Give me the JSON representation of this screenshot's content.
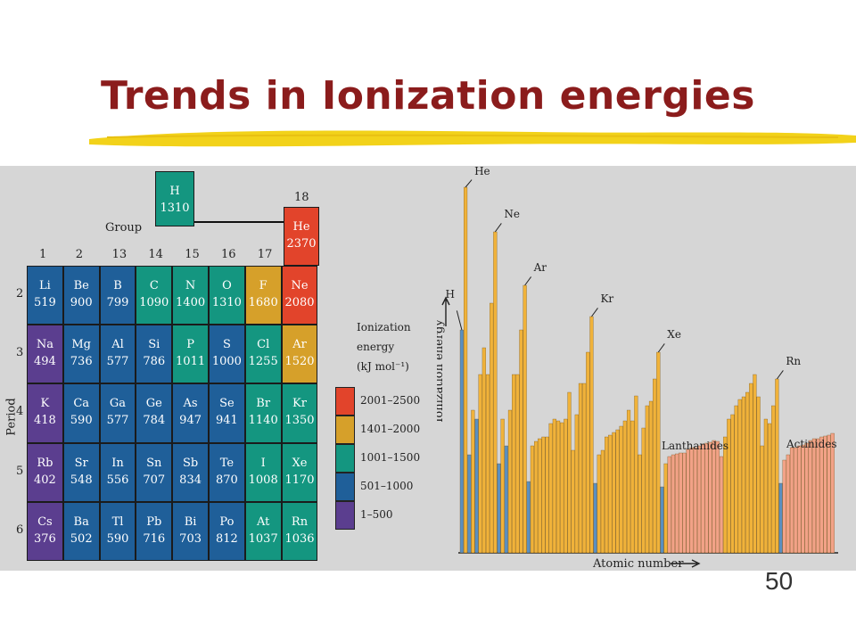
{
  "slide": {
    "title": "Trends in Ionization energies",
    "page_number": "50"
  },
  "colors": {
    "title": "#8b1c1c",
    "highlighter": "#f2d21a",
    "purple": "#5b3e8f",
    "blue": "#1f5f99",
    "teal": "#149680",
    "gold": "#d6a02a",
    "red": "#e2442b",
    "bar_orange": "#f0b23a",
    "bar_blue": "#5a8fc0",
    "bar_salmon": "#f2a287"
  },
  "periodic_table": {
    "hydrogen": {
      "sym": "H",
      "val": "1310",
      "color": "teal"
    },
    "group_label": "Group",
    "group_18_label": "18",
    "period_label": "Period",
    "group_numbers": [
      "1",
      "2",
      "13",
      "14",
      "15",
      "16",
      "17"
    ],
    "period_numbers": [
      "2",
      "3",
      "4",
      "5",
      "6"
    ],
    "helium": {
      "sym": "He",
      "val": "2370",
      "color": "red"
    },
    "rows": [
      [
        {
          "sym": "Li",
          "val": "519",
          "color": "blue"
        },
        {
          "sym": "Be",
          "val": "900",
          "color": "blue"
        },
        {
          "sym": "B",
          "val": "799",
          "color": "blue"
        },
        {
          "sym": "C",
          "val": "1090",
          "color": "teal"
        },
        {
          "sym": "N",
          "val": "1400",
          "color": "teal"
        },
        {
          "sym": "O",
          "val": "1310",
          "color": "teal"
        },
        {
          "sym": "F",
          "val": "1680",
          "color": "gold"
        },
        {
          "sym": "Ne",
          "val": "2080",
          "color": "red"
        }
      ],
      [
        {
          "sym": "Na",
          "val": "494",
          "color": "purple"
        },
        {
          "sym": "Mg",
          "val": "736",
          "color": "blue"
        },
        {
          "sym": "Al",
          "val": "577",
          "color": "blue"
        },
        {
          "sym": "Si",
          "val": "786",
          "color": "blue"
        },
        {
          "sym": "P",
          "val": "1011",
          "color": "teal"
        },
        {
          "sym": "S",
          "val": "1000",
          "color": "blue"
        },
        {
          "sym": "Cl",
          "val": "1255",
          "color": "teal"
        },
        {
          "sym": "Ar",
          "val": "1520",
          "color": "gold"
        }
      ],
      [
        {
          "sym": "K",
          "val": "418",
          "color": "purple"
        },
        {
          "sym": "Ca",
          "val": "590",
          "color": "blue"
        },
        {
          "sym": "Ga",
          "val": "577",
          "color": "blue"
        },
        {
          "sym": "Ge",
          "val": "784",
          "color": "blue"
        },
        {
          "sym": "As",
          "val": "947",
          "color": "blue"
        },
        {
          "sym": "Se",
          "val": "941",
          "color": "blue"
        },
        {
          "sym": "Br",
          "val": "1140",
          "color": "teal"
        },
        {
          "sym": "Kr",
          "val": "1350",
          "color": "teal"
        }
      ],
      [
        {
          "sym": "Rb",
          "val": "402",
          "color": "purple"
        },
        {
          "sym": "Sr",
          "val": "548",
          "color": "blue"
        },
        {
          "sym": "In",
          "val": "556",
          "color": "blue"
        },
        {
          "sym": "Sn",
          "val": "707",
          "color": "blue"
        },
        {
          "sym": "Sb",
          "val": "834",
          "color": "blue"
        },
        {
          "sym": "Te",
          "val": "870",
          "color": "blue"
        },
        {
          "sym": "I",
          "val": "1008",
          "color": "teal"
        },
        {
          "sym": "Xe",
          "val": "1170",
          "color": "teal"
        }
      ],
      [
        {
          "sym": "Cs",
          "val": "376",
          "color": "purple"
        },
        {
          "sym": "Ba",
          "val": "502",
          "color": "blue"
        },
        {
          "sym": "Tl",
          "val": "590",
          "color": "blue"
        },
        {
          "sym": "Pb",
          "val": "716",
          "color": "blue"
        },
        {
          "sym": "Bi",
          "val": "703",
          "color": "blue"
        },
        {
          "sym": "Po",
          "val": "812",
          "color": "blue"
        },
        {
          "sym": "At",
          "val": "1037",
          "color": "teal"
        },
        {
          "sym": "Rn",
          "val": "1036",
          "color": "teal"
        }
      ]
    ]
  },
  "legend": {
    "title_lines": [
      "Ionization",
      "energy",
      "(kJ mol⁻¹)"
    ],
    "items": [
      {
        "label": "2001–2500",
        "color": "red"
      },
      {
        "label": "1401–2000",
        "color": "gold"
      },
      {
        "label": "1001–1500",
        "color": "teal"
      },
      {
        "label": "501–1000",
        "color": "blue"
      },
      {
        "label": "1–500",
        "color": "purple"
      }
    ]
  },
  "bar_chart": {
    "y_label": "Ionization energy",
    "x_label": "Atomic number",
    "labels": [
      "He",
      "Ne",
      "Ar",
      "Kr",
      "Xe",
      "Rn",
      "H"
    ],
    "group_labels": [
      "Lanthanides",
      "Actinides"
    ]
  }
}
